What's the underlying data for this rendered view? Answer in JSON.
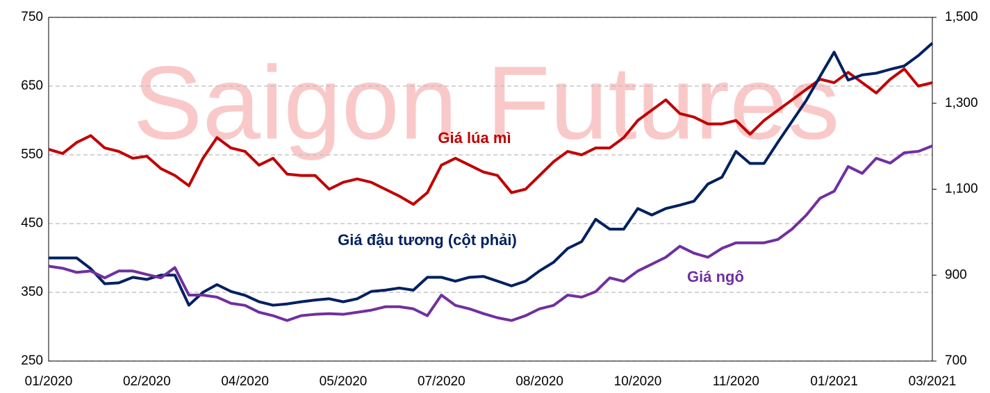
{
  "chart_data": {
    "type": "line",
    "watermark": "Saigon Futures",
    "categories": [
      "01/2020",
      null,
      null,
      null,
      null,
      null,
      null,
      "02/2020",
      null,
      null,
      null,
      null,
      null,
      null,
      "04/2020",
      null,
      null,
      null,
      null,
      null,
      null,
      "05/2020",
      null,
      null,
      null,
      null,
      null,
      null,
      "07/2020",
      null,
      null,
      null,
      null,
      null,
      null,
      "08/2020",
      null,
      null,
      null,
      null,
      null,
      null,
      "10/2020",
      null,
      null,
      null,
      null,
      null,
      null,
      "11/2020",
      null,
      null,
      null,
      null,
      null,
      null,
      "01/2021",
      null,
      null,
      null,
      null,
      null,
      null,
      "03/2021"
    ],
    "series": [
      {
        "name": "Giá lúa mì",
        "color": "#c00000",
        "values": [
          558,
          552,
          568,
          578,
          560,
          555,
          545,
          548,
          530,
          520,
          505,
          545,
          575,
          560,
          555,
          535,
          545,
          522,
          520,
          520,
          500,
          510,
          515,
          510,
          500,
          490,
          478,
          495,
          535,
          545,
          535,
          525,
          520,
          495,
          500,
          520,
          540,
          555,
          550,
          560,
          560,
          575,
          600,
          615,
          630,
          610,
          605,
          595,
          595,
          600,
          580,
          600,
          615,
          630,
          645,
          660,
          655,
          670,
          655,
          640,
          660,
          675,
          650,
          655
        ]
      },
      {
        "name": "Giá đậu tương (cột phải)",
        "color": "#002060",
        "axis": "y2",
        "values": [
          940,
          940,
          940,
          915,
          880,
          882,
          895,
          890,
          900,
          900,
          830,
          860,
          878,
          862,
          853,
          838,
          830,
          833,
          838,
          842,
          845,
          838,
          845,
          862,
          865,
          870,
          865,
          895,
          895,
          886,
          895,
          897,
          886,
          875,
          886,
          910,
          930,
          962,
          978,
          1030,
          1007,
          1007,
          1055,
          1040,
          1055,
          1063,
          1072,
          1112,
          1128,
          1188,
          1160,
          1160,
          1210,
          1258,
          1306,
          1363,
          1419,
          1354,
          1366,
          1370,
          1379,
          1387,
          1411,
          1440
        ]
      },
      {
        "name": "Giá ngô",
        "color": "#7030a0",
        "values": [
          388,
          385,
          379,
          381,
          371,
          381,
          381,
          376,
          371,
          386,
          346,
          346,
          343,
          334,
          331,
          321,
          316,
          309,
          316,
          318,
          319,
          318,
          321,
          324,
          329,
          329,
          326,
          316,
          346,
          331,
          326,
          319,
          313,
          309,
          316,
          326,
          331,
          346,
          343,
          351,
          371,
          366,
          381,
          391,
          401,
          417,
          407,
          401,
          414,
          422,
          422,
          422,
          427,
          442,
          462,
          487,
          497,
          533,
          523,
          545,
          538,
          553,
          555,
          563
        ]
      }
    ],
    "ylim": [
      250,
      750
    ],
    "yticks": [
      250,
      350,
      450,
      550,
      650,
      750
    ],
    "y2lim": [
      700,
      1500
    ],
    "y2ticks": [
      700,
      900,
      {
        "value": 1100,
        "label": "1,100"
      },
      {
        "value": 1300,
        "label": "1,300"
      },
      {
        "value": 1500,
        "label": "1,500"
      }
    ],
    "grid": true
  }
}
